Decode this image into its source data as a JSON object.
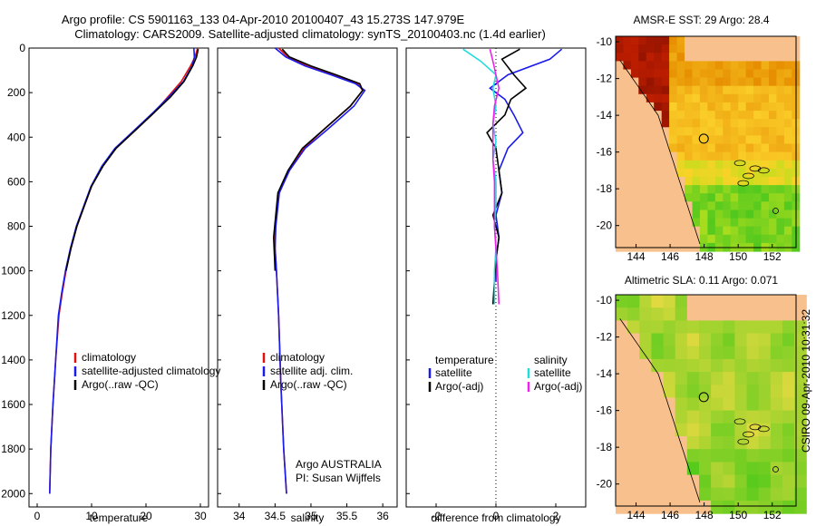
{
  "title": {
    "line1": "Argo profile: CS 5901163_133 04-Apr-2010 20100407_43 15.273S 147.979E",
    "line2": "Climatology: CARS2009. Satellite-adjusted climatology: synTS_20100403.nc (1.4d earlier)"
  },
  "colors": {
    "climatology": "#dd1111",
    "satellite": "#1a1aee",
    "argo": "#000000",
    "sat_salinity": "#22dddd",
    "argo_salinity": "#ee22ee",
    "land": "#f8c08c"
  },
  "chart_data": [
    {
      "type": "line",
      "title": "",
      "xlabel": "temperature",
      "ylabel": "",
      "xlim": [
        -1.5,
        31.5
      ],
      "ylim": [
        0,
        2060
      ],
      "xticks": [
        "0",
        "10",
        "20",
        "30"
      ],
      "yticks": [
        "0",
        "200",
        "400",
        "600",
        "800",
        "1000",
        "1200",
        "1400",
        "1600",
        "1800",
        "2000"
      ],
      "legend": [
        "climatology",
        "satellite-adjusted climatology",
        "Argo(..raw -QC)"
      ],
      "series": [
        {
          "name": "climatology",
          "color": "climatology",
          "x": [
            29.5,
            29.0,
            28.2,
            26.5,
            24.0,
            21.5,
            18.0,
            14.5,
            12.0,
            10.0,
            8.8,
            7.3,
            6.2,
            5.3,
            4.6,
            4.0,
            3.4,
            2.9,
            2.5,
            2.3
          ],
          "y": [
            0,
            40,
            80,
            150,
            220,
            290,
            370,
            450,
            530,
            620,
            700,
            800,
            900,
            1000,
            1100,
            1200,
            1400,
            1600,
            1800,
            2000
          ]
        },
        {
          "name": "satellite-adjusted climatology",
          "color": "satellite",
          "x": [
            28.8,
            28.9,
            28.5,
            26.9,
            24.2,
            21.3,
            17.8,
            14.3,
            11.9,
            9.9,
            8.7,
            7.2,
            6.1,
            5.2,
            4.5,
            3.9,
            3.4,
            2.9,
            2.5,
            2.3
          ],
          "y": [
            0,
            40,
            80,
            150,
            220,
            290,
            370,
            450,
            530,
            620,
            700,
            800,
            900,
            1000,
            1100,
            1200,
            1400,
            1600,
            1800,
            2000
          ]
        },
        {
          "name": "Argo(..raw -QC)",
          "color": "argo",
          "x": [
            29.6,
            29.3,
            28.6,
            27.0,
            24.5,
            21.5,
            18.0,
            14.5,
            12.1,
            10.0,
            8.8,
            7.3,
            6.2,
            5.3
          ],
          "y": [
            5,
            40,
            80,
            150,
            220,
            290,
            370,
            450,
            530,
            620,
            700,
            800,
            900,
            1000
          ]
        }
      ]
    },
    {
      "type": "line",
      "title": "",
      "xlabel": "salinity",
      "ylabel": "",
      "xlim": [
        33.7,
        36.2
      ],
      "ylim": [
        0,
        2060
      ],
      "xticks": [
        "34",
        "34.5",
        "35",
        "35.5",
        "36"
      ],
      "legend": [
        "climatology",
        "satellite adj. clim.",
        "Argo(..raw -QC)"
      ],
      "annotations": [
        "Argo AUSTRALIA",
        "PI: Susan Wijffels"
      ],
      "series": [
        {
          "name": "climatology",
          "color": "climatology",
          "x": [
            34.55,
            34.68,
            34.95,
            35.3,
            35.65,
            35.72,
            35.55,
            35.2,
            34.9,
            34.7,
            34.55,
            34.5,
            34.5,
            34.52,
            34.55,
            34.58,
            34.62,
            34.66
          ],
          "y": [
            0,
            40,
            80,
            120,
            160,
            190,
            260,
            360,
            450,
            550,
            650,
            800,
            900,
            1000,
            1200,
            1500,
            1800,
            2000
          ]
        },
        {
          "name": "satellite adj. clim.",
          "color": "satellite",
          "x": [
            34.5,
            34.65,
            34.92,
            35.28,
            35.62,
            35.75,
            35.6,
            35.25,
            34.92,
            34.7,
            34.56,
            34.51,
            34.5,
            34.52,
            34.55,
            34.58,
            34.62,
            34.66
          ],
          "y": [
            0,
            40,
            80,
            120,
            160,
            190,
            260,
            360,
            450,
            550,
            650,
            800,
            900,
            1000,
            1200,
            1500,
            1800,
            2000
          ]
        },
        {
          "name": "Argo(..raw -QC)",
          "color": "argo",
          "x": [
            34.6,
            34.7,
            35.0,
            35.35,
            35.68,
            35.72,
            35.55,
            35.2,
            34.88,
            34.68,
            34.54,
            34.48,
            34.5
          ],
          "y": [
            5,
            40,
            80,
            120,
            160,
            190,
            260,
            360,
            450,
            550,
            650,
            850,
            1000
          ]
        }
      ]
    },
    {
      "type": "line",
      "title": "",
      "xlabel": "difference from climatology",
      "ylabel": "",
      "xlim": [
        -3.0,
        3.0
      ],
      "ylim": [
        0,
        2060
      ],
      "xticks": [
        "-2",
        "0",
        "2"
      ],
      "legend_groups": [
        {
          "header": "temperature",
          "entries": [
            "satellite",
            "Argo(-adj)"
          ]
        },
        {
          "header": "salinity",
          "entries": [
            "satellite",
            "Argo(-adj)"
          ]
        }
      ],
      "series": [
        {
          "name": "temperature satellite",
          "color": "satellite",
          "x": [
            2.2,
            1.8,
            0.4,
            -0.2,
            0.3,
            0.6,
            0.9,
            0.4,
            0.1,
            0.2,
            0.0,
            0.1,
            0.0,
            0.0
          ],
          "y": [
            5,
            50,
            120,
            180,
            230,
            300,
            380,
            450,
            550,
            650,
            750,
            850,
            950,
            1050
          ]
        },
        {
          "name": "temperature Argo(-adj)",
          "color": "argo",
          "x": [
            0.8,
            0.2,
            0.6,
            1.0,
            0.5,
            0.3,
            -0.3,
            0.0,
            0.1,
            0.2,
            -0.1,
            0.1,
            0.0,
            -0.1
          ],
          "y": [
            5,
            50,
            120,
            180,
            230,
            300,
            380,
            450,
            550,
            650,
            750,
            850,
            950,
            1150
          ]
        },
        {
          "name": "salinity satellite",
          "color": "sat_salinity",
          "x": [
            -1.1,
            -0.5,
            0.0,
            -0.1,
            0.0,
            -0.1,
            0.0,
            -0.1,
            0.0,
            0.0,
            -0.05,
            0.0,
            -0.05,
            -0.05
          ],
          "y": [
            5,
            60,
            120,
            180,
            260,
            340,
            420,
            500,
            600,
            700,
            800,
            900,
            1000,
            1150
          ]
        },
        {
          "name": "salinity Argo(-adj)",
          "color": "argo_salinity",
          "x": [
            -0.2,
            -0.1,
            0.0,
            0.1,
            -0.05,
            -0.1,
            -0.1,
            -0.1,
            -0.05,
            -0.05,
            -0.05,
            0.0,
            0.05,
            0.1
          ],
          "y": [
            5,
            60,
            120,
            180,
            260,
            340,
            420,
            500,
            600,
            700,
            800,
            900,
            1000,
            1150
          ]
        }
      ]
    },
    {
      "type": "heatmap",
      "title": "AMSR-E SST: 29 Argo: 28.4",
      "xlabel": "",
      "ylabel": "",
      "xlim": [
        142.8,
        153.4
      ],
      "ylim": [
        -21.2,
        -9.7
      ],
      "xticks": [
        "144",
        "146",
        "148",
        "150",
        "152"
      ],
      "yticks": [
        "-10",
        "-12",
        "-14",
        "-16",
        "-18",
        "-20"
      ],
      "profile_location": [
        147.979,
        -15.273
      ]
    },
    {
      "type": "heatmap",
      "title": "Altimetric SLA: 0.11 Argo: 0.071",
      "xlabel": "",
      "ylabel": "",
      "xlim": [
        142.8,
        153.4
      ],
      "ylim": [
        -21.2,
        -9.7
      ],
      "xticks": [
        "144",
        "146",
        "148",
        "150",
        "152"
      ],
      "yticks": [
        "-10",
        "-12",
        "-14",
        "-16",
        "-18",
        "-20"
      ],
      "profile_location": [
        147.979,
        -15.273
      ]
    }
  ],
  "footer_stamp": "CSIRO 09-Apr-2010 10:31:32"
}
